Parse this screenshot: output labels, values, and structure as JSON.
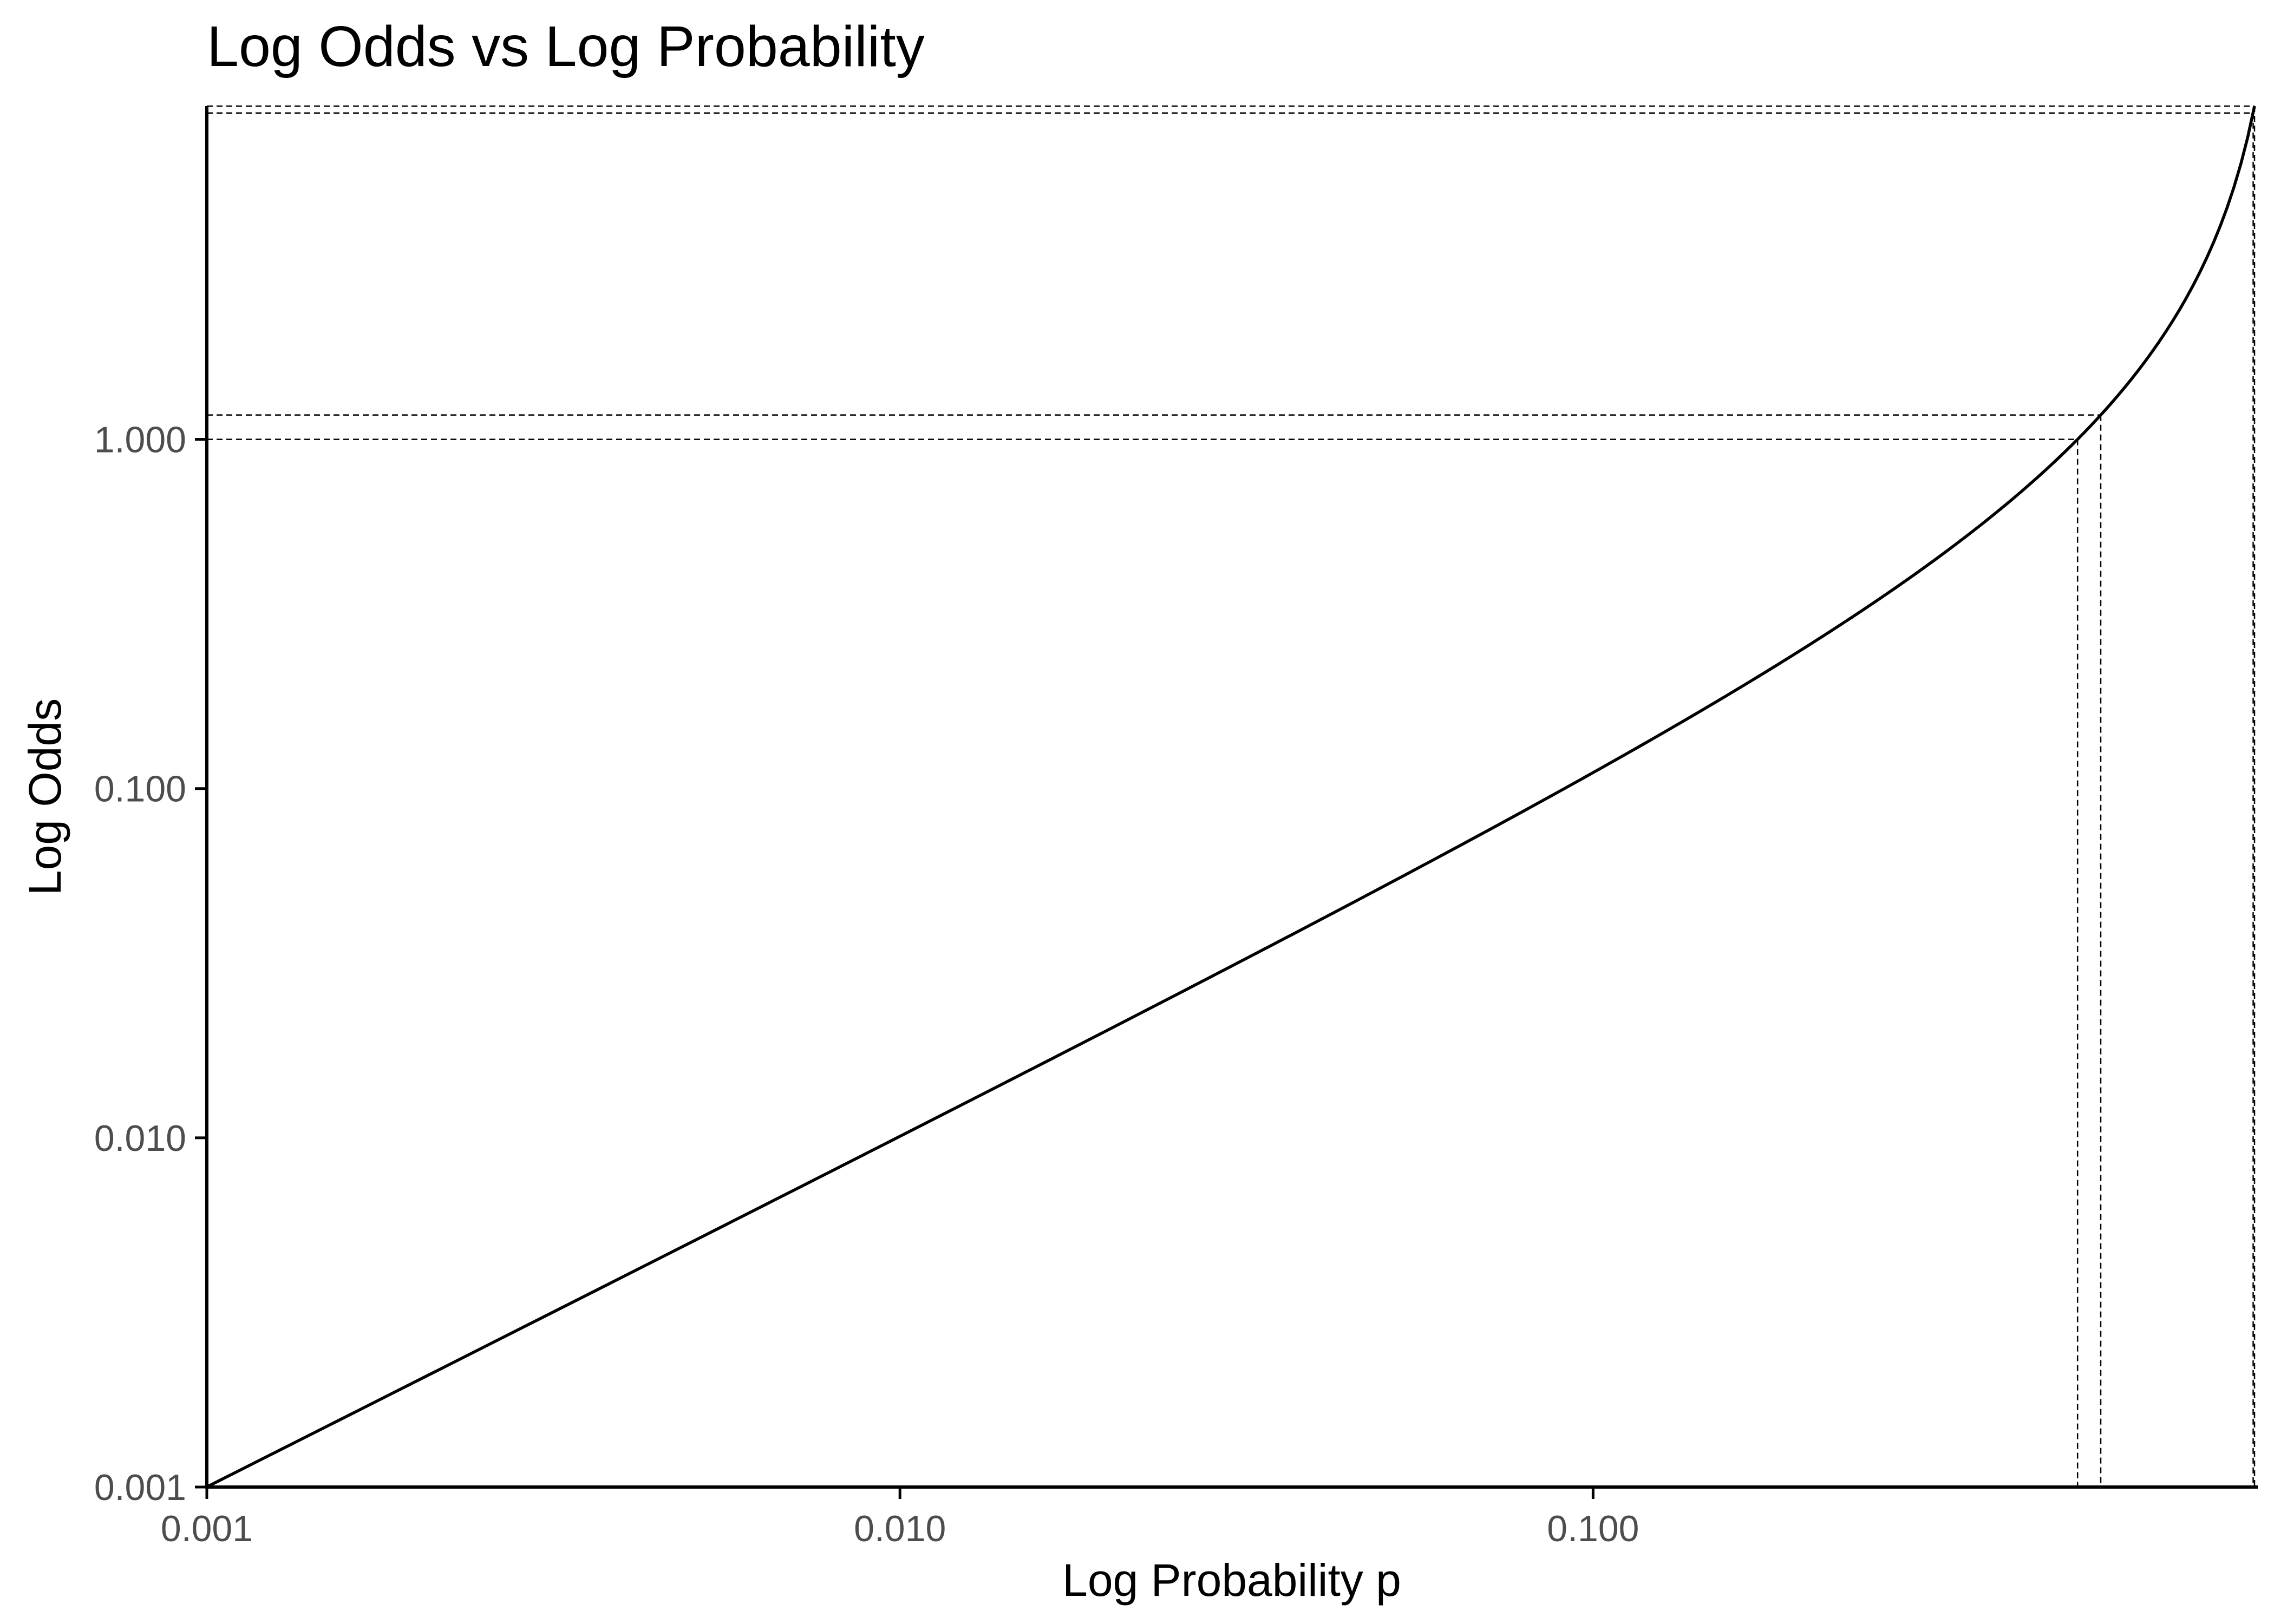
{
  "chart_data": {
    "type": "line",
    "title": "Log Odds vs Log Probability",
    "xlabel": "Log Probability p",
    "ylabel": "Log Odds",
    "x_scale": "log10",
    "y_scale": "log10",
    "xlim": [
      0.001,
      0.9
    ],
    "ylim": [
      0.001,
      9.0
    ],
    "x_ticks": [
      0.001,
      0.01,
      0.1
    ],
    "x_tick_labels": [
      "0.001",
      "0.010",
      "0.100"
    ],
    "y_ticks": [
      0.001,
      0.01,
      0.1,
      1.0
    ],
    "y_tick_labels": [
      "0.001",
      "0.010",
      "0.100",
      "1.000"
    ],
    "grid": false,
    "legend": "none",
    "series": [
      {
        "function": "odds = p / (1 - p)",
        "x": [
          0.001,
          0.002,
          0.005,
          0.01,
          0.02,
          0.05,
          0.1,
          0.2,
          0.3,
          0.4,
          0.5,
          0.54,
          0.6,
          0.7,
          0.75,
          0.8,
          0.85,
          0.88,
          0.9
        ],
        "values": [
          0.001,
          0.002,
          0.005,
          0.0101,
          0.0204,
          0.0526,
          0.111,
          0.25,
          0.4286,
          0.6667,
          1.0,
          1.174,
          1.5,
          2.333,
          3.0,
          4.0,
          5.667,
          7.333,
          9.0
        ],
        "color": "#000000"
      }
    ],
    "reference_lines": [
      {
        "p": 0.5,
        "odds": 1.0,
        "style": "dashed"
      },
      {
        "p": 0.54,
        "odds": 1.174,
        "style": "dashed"
      },
      {
        "p": 0.896,
        "odds": 8.6,
        "style": "dashed"
      },
      {
        "p": 0.9,
        "odds": 9.0,
        "style": "dashed"
      }
    ]
  }
}
